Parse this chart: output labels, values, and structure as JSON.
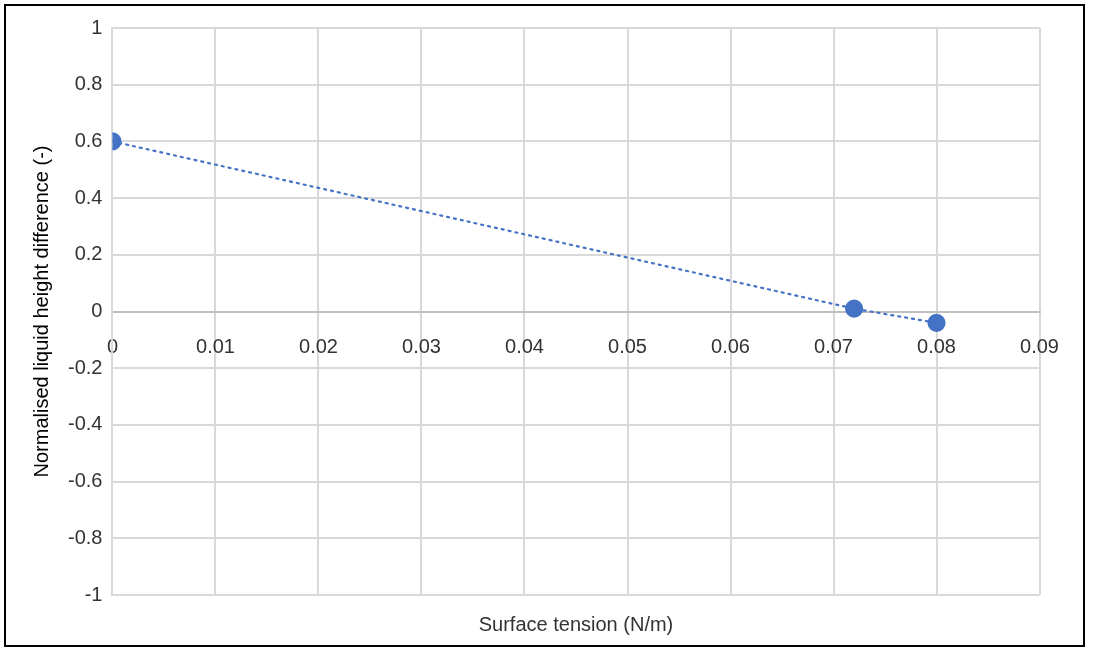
{
  "chart_data": {
    "type": "line",
    "xlabel": "Surface tension (N/m)",
    "ylabel": "Normalised liquid height difference (-)",
    "x": [
      0,
      0.072,
      0.08
    ],
    "series": [
      {
        "color": "#4472c4",
        "values": [
          0.6,
          0.01,
          -0.04
        ]
      }
    ],
    "xlim": [
      0,
      0.09
    ],
    "xticks": [
      0,
      0.01,
      0.02,
      0.03,
      0.04,
      0.05,
      0.06,
      0.07,
      0.08,
      0.09
    ],
    "ylim": [
      -1,
      1
    ],
    "yticks": [
      -1,
      -0.8,
      -0.6,
      -0.4,
      -0.2,
      0,
      0.2,
      0.4,
      0.6,
      0.8,
      1
    ],
    "grid": true,
    "legend": false,
    "marker": "circle",
    "line_style": "dotted"
  }
}
